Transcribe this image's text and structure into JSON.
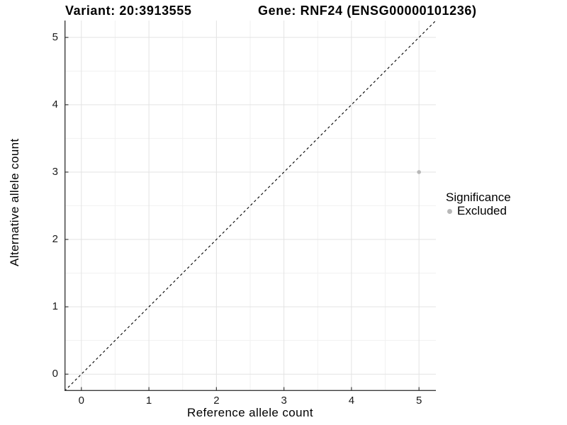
{
  "titles": {
    "variant": "Variant: 20:3913555",
    "gene": "Gene: RNF24 (ENSG00000101236)"
  },
  "legend": {
    "title": "Significance",
    "position": "right",
    "items": [
      {
        "label": "Excluded",
        "color": "#b8b8b8"
      }
    ]
  },
  "chart_data": {
    "type": "scatter",
    "title_left": "Variant: 20:3913555",
    "title_right": "Gene: RNF24 (ENSG00000101236)",
    "xlabel": "Reference allele count",
    "ylabel": "Alternative allele count",
    "xlim": [
      -0.25,
      5.25
    ],
    "ylim": [
      -0.25,
      5.25
    ],
    "xticks": [
      0,
      1,
      2,
      3,
      4,
      5
    ],
    "yticks": [
      0,
      1,
      2,
      3,
      4,
      5
    ],
    "xminor": [
      0.5,
      1.5,
      2.5,
      3.5,
      4.5
    ],
    "yminor": [
      0.5,
      1.5,
      2.5,
      3.5,
      4.5
    ],
    "grid": {
      "major": true,
      "minor": true
    },
    "reference_line": {
      "type": "identity",
      "style": "dashed",
      "color": "#000000",
      "from": [
        -0.25,
        -0.25
      ],
      "to": [
        5.25,
        5.25
      ]
    },
    "series": [
      {
        "name": "Excluded",
        "color": "#b8b8b8",
        "points": [
          {
            "x": 5,
            "y": 3
          }
        ]
      }
    ],
    "legend_position": "right",
    "colors": {
      "grid_major": "#e3e3e3",
      "grid_minor": "#f1f1f1",
      "axis": "#3c3c3c",
      "text": "#000000",
      "background": "#ffffff"
    }
  }
}
